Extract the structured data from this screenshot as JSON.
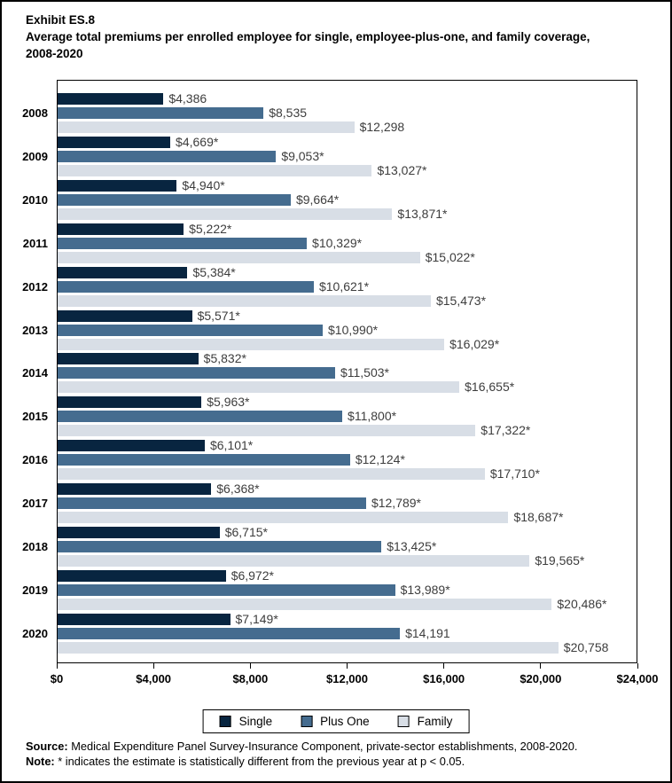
{
  "title": {
    "exhibit": "Exhibit ES.8",
    "text": "Average total premiums per enrolled employee for single, employee-plus-one, and family coverage, 2008-2020"
  },
  "chart_data": {
    "type": "bar",
    "orientation": "horizontal",
    "title": "Average total premiums per enrolled employee for single, employee-plus-one, and family coverage, 2008-2020",
    "categories": [
      "2008",
      "2009",
      "2010",
      "2011",
      "2012",
      "2013",
      "2014",
      "2015",
      "2016",
      "2017",
      "2018",
      "2019",
      "2020"
    ],
    "series": [
      {
        "name": "Single",
        "color": "#082540",
        "values": [
          4386,
          4669,
          4940,
          5222,
          5384,
          5571,
          5832,
          5963,
          6101,
          6368,
          6715,
          6972,
          7149
        ],
        "labels": [
          "$4,386",
          "$4,669*",
          "$4,940*",
          "$5,222*",
          "$5,384*",
          "$5,571*",
          "$5,832*",
          "$5,963*",
          "$6,101*",
          "$6,368*",
          "$6,715*",
          "$6,972*",
          "$7,149*"
        ]
      },
      {
        "name": "Plus One",
        "color": "#456c8f",
        "values": [
          8535,
          9053,
          9664,
          10329,
          10621,
          10990,
          11503,
          11800,
          12124,
          12789,
          13425,
          13989,
          14191
        ],
        "labels": [
          "$8,535",
          "$9,053*",
          "$9,664*",
          "$10,329*",
          "$10,621*",
          "$10,990*",
          "$11,503*",
          "$11,800*",
          "$12,124*",
          "$12,789*",
          "$13,425*",
          "$13,989*",
          "$14,191"
        ]
      },
      {
        "name": "Family",
        "color": "#d8dee6",
        "values": [
          12298,
          13027,
          13871,
          15022,
          15473,
          16029,
          16655,
          17322,
          17710,
          18687,
          19565,
          20486,
          20758
        ],
        "labels": [
          "$12,298",
          "$13,027*",
          "$13,871*",
          "$15,022*",
          "$15,473*",
          "$16,029*",
          "$16,655*",
          "$17,322*",
          "$17,710*",
          "$18,687*",
          "$19,565*",
          "$20,486*",
          "$20,758"
        ]
      }
    ],
    "xlim": [
      0,
      24000
    ],
    "x_ticks": [
      "$0",
      "$4,000",
      "$8,000",
      "$12,000",
      "$16,000",
      "$20,000",
      "$24,000"
    ],
    "x_tick_values": [
      0,
      4000,
      8000,
      12000,
      16000,
      20000,
      24000
    ],
    "grid": false,
    "legend_position": "bottom"
  },
  "legend": {
    "items": [
      {
        "label": "Single",
        "color": "#082540"
      },
      {
        "label": "Plus One",
        "color": "#456c8f"
      },
      {
        "label": "Family",
        "color": "#d8dee6"
      }
    ]
  },
  "footer": {
    "source_label": "Source:",
    "source_text": "Medical Expenditure Panel Survey-Insurance Component, private-sector establishments, 2008-2020.",
    "note_label": "Note:",
    "note_text": "* indicates the estimate is statistically different from the previous year at p < 0.05."
  }
}
